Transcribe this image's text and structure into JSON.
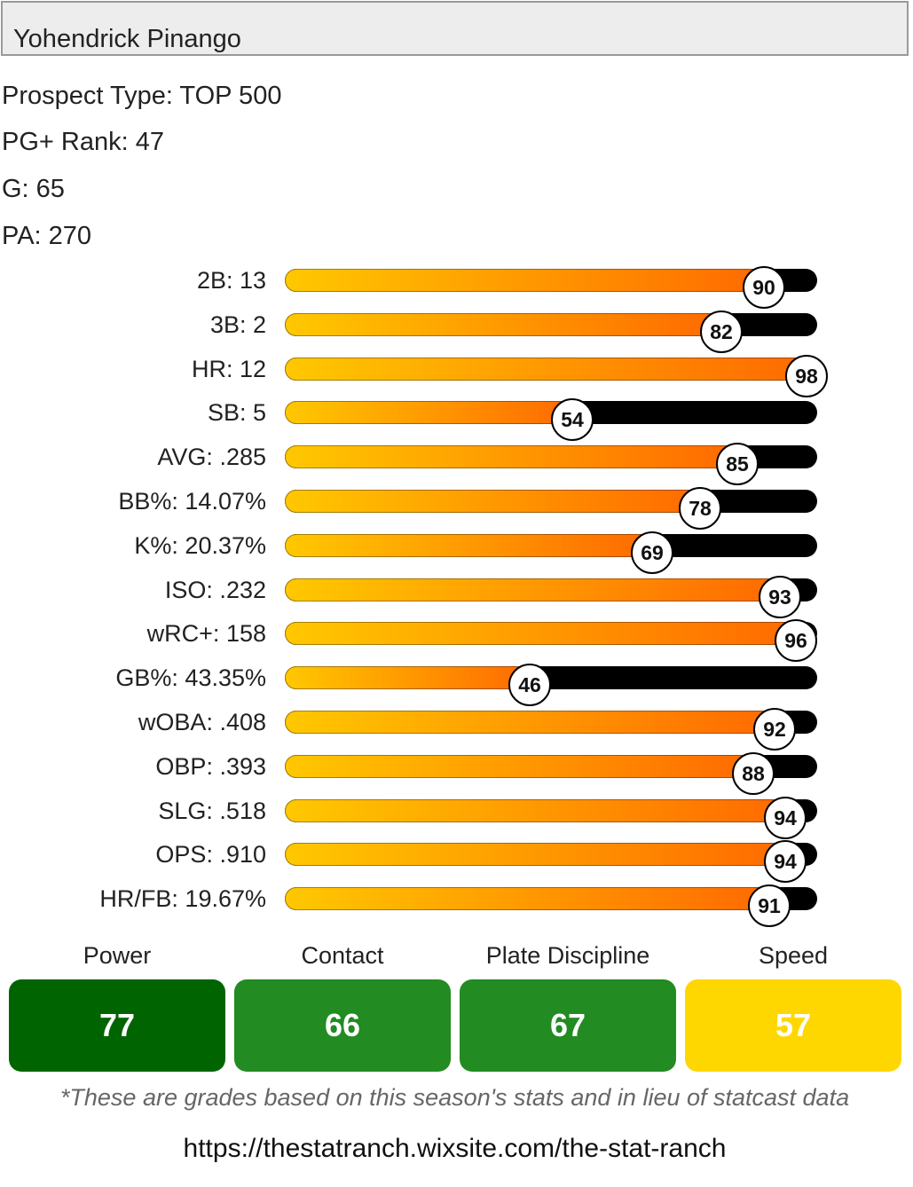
{
  "player": {
    "name": "Yohendrick Pinango"
  },
  "info": [
    {
      "text": "Prospect Type: TOP 500"
    },
    {
      "text": "PG+ Rank: 47"
    },
    {
      "text": "G: 65"
    },
    {
      "text": "PA: 270"
    }
  ],
  "chart_data": {
    "type": "bar",
    "title": "",
    "xlabel": "",
    "ylabel": "",
    "xlim": [
      0,
      100
    ],
    "categories": [
      "2B: 13",
      "3B: 2",
      "HR: 12",
      "SB: 5",
      "AVG: .285",
      "BB%: 14.07%",
      "K%: 20.37%",
      "ISO: .232",
      "wRC+: 158",
      "GB%: 43.35%",
      "wOBA: .408",
      "OBP: .393",
      "SLG: .518",
      "OPS: .910",
      "HR/FB: 19.67%"
    ],
    "values": [
      90,
      82,
      98,
      54,
      85,
      78,
      69,
      93,
      96,
      46,
      92,
      88,
      94,
      94,
      91
    ]
  },
  "grades": [
    {
      "label": "Power",
      "value": "77",
      "color": "#006400"
    },
    {
      "label": "Contact",
      "value": "66",
      "color": "#228b22"
    },
    {
      "label": "Plate Discipline",
      "value": "67",
      "color": "#228b22"
    },
    {
      "label": "Speed",
      "value": "57",
      "color": "#ffd700"
    }
  ],
  "footnote": "*These are grades based on this season's stats and in lieu of statcast data",
  "url": "https://thestatranch.wixsite.com/the-stat-ranch"
}
